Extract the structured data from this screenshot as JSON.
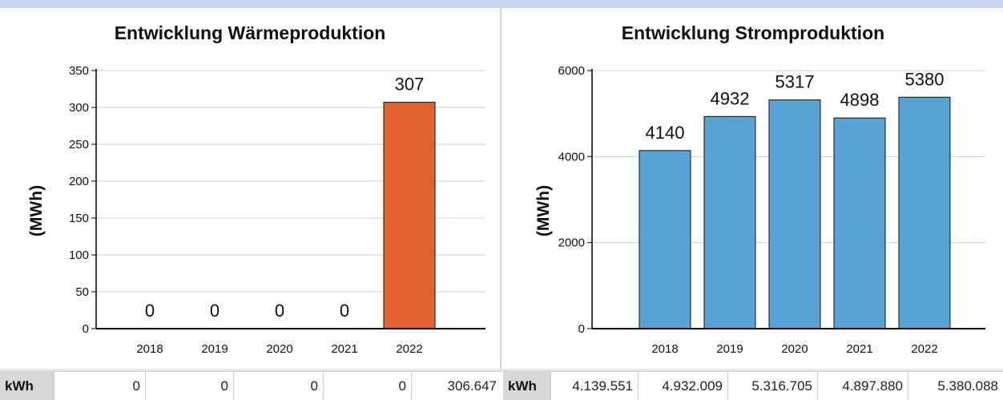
{
  "charts": [
    {
      "title": "Entwicklung Wärmeproduktion",
      "table_unit": "kWh",
      "table_values": [
        "0",
        "0",
        "0",
        "0",
        "306.647"
      ]
    },
    {
      "title": "Entwicklung Stromproduktion",
      "table_unit": "kWh",
      "table_values": [
        "4.139.551",
        "4.932.009",
        "5.316.705",
        "4.897.880",
        "5.380.088"
      ]
    }
  ],
  "chart_data": [
    {
      "type": "bar",
      "title": "Entwicklung Wärmeproduktion",
      "xlabel": "",
      "ylabel": "(MWh)",
      "categories": [
        "2018",
        "2019",
        "2020",
        "2021",
        "2022"
      ],
      "values": [
        0,
        0,
        0,
        0,
        307
      ],
      "labels": [
        "0",
        "0",
        "0",
        "0",
        "307"
      ],
      "ylim": [
        0,
        350
      ],
      "yticks": [
        0,
        50,
        100,
        150,
        200,
        250,
        300,
        350
      ],
      "grid": true,
      "bar_color": "#e4622f"
    },
    {
      "type": "bar",
      "title": "Entwicklung Stromproduktion",
      "xlabel": "",
      "ylabel": "(MWh)",
      "categories": [
        "2018",
        "2019",
        "2020",
        "2021",
        "2022"
      ],
      "values": [
        4140,
        4932,
        5317,
        4898,
        5380
      ],
      "labels": [
        "4140",
        "4932",
        "5317",
        "4898",
        "5380"
      ],
      "ylim": [
        0,
        6000
      ],
      "yticks": [
        0,
        2000,
        4000,
        6000
      ],
      "grid": true,
      "bar_color": "#56a3d6"
    }
  ]
}
